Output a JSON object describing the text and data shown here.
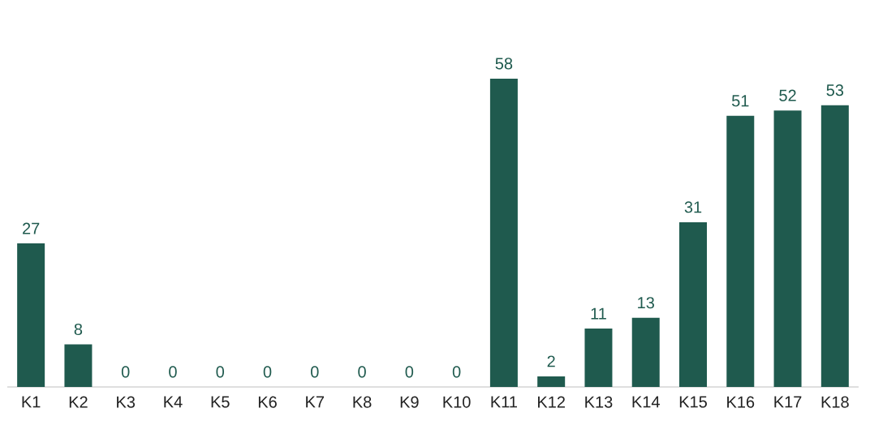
{
  "chart_data": {
    "type": "bar",
    "categories": [
      "K1",
      "K2",
      "K3",
      "K4",
      "K5",
      "K6",
      "K7",
      "K8",
      "K9",
      "K10",
      "K11",
      "K12",
      "K13",
      "K14",
      "K15",
      "K16",
      "K17",
      "K18"
    ],
    "values": [
      27,
      8,
      0,
      0,
      0,
      0,
      0,
      0,
      0,
      0,
      58,
      2,
      11,
      13,
      31,
      51,
      52,
      53
    ],
    "color": "#1f5a4e",
    "data_labels": true
  }
}
